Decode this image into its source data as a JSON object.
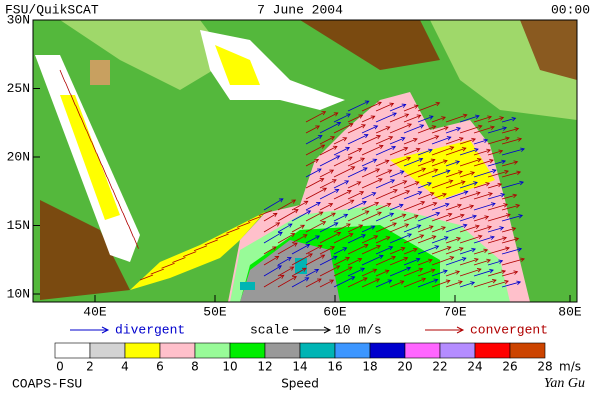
{
  "header": {
    "left": "FSU/QuikSCAT",
    "center": "7 June 2004",
    "right": "00:00"
  },
  "map": {
    "lat_labels": [
      "30N",
      "25N",
      "20N",
      "15N",
      "10N"
    ],
    "lon_labels": [
      "40E",
      "50E",
      "60E",
      "70E",
      "80E"
    ]
  },
  "legend": {
    "divergent": "divergent",
    "scale": "scale",
    "scale_value": "10 m/s",
    "convergent": "convergent"
  },
  "colorbar": {
    "colors": [
      "#ffffff",
      "#d3d3d3",
      "#ffff00",
      "#ffc0cb",
      "#98fb98",
      "#00ee00",
      "#999999",
      "#00b4b4",
      "#3c96ff",
      "#0000cd",
      "#ff66ff",
      "#b48cff",
      "#ff0000",
      "#cc4400",
      "#000000"
    ],
    "labels": [
      "0",
      "2",
      "4",
      "6",
      "8",
      "10",
      "12",
      "14",
      "16",
      "18",
      "20",
      "22",
      "24",
      "26",
      "28"
    ],
    "unit": "m/s",
    "title": "Speed"
  },
  "footer": {
    "left": "COAPS-FSU",
    "right": "Yan Gu"
  }
}
